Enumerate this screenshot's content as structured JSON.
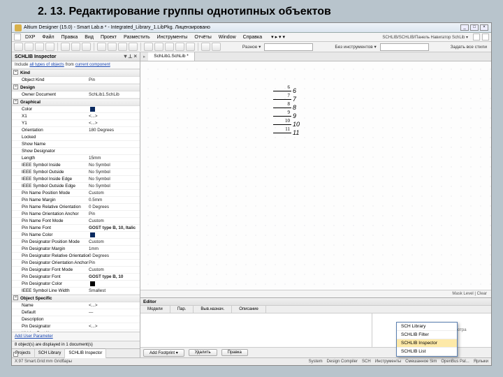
{
  "page_heading": "2. 13. Редактирование группы однотипных объектов",
  "titlebar": {
    "text": "Altium Designer (15.0) - Smart Lab.в * - Integrated_Library_1.LibPkg. Лицензировано"
  },
  "menu": {
    "items": [
      "DXP",
      "Файл",
      "Правка",
      "Вид",
      "Проект",
      "Разместить",
      "Инструменты",
      "Отчёты",
      "Window",
      "Справка"
    ],
    "right_label": "SCHLIB/SCHLIB/Панель Навигатор SchLib ▾"
  },
  "toolbar": {
    "search_label": "Разное ▾",
    "alt_label": "Без инструментов ▾",
    "hint": "Задать все стили"
  },
  "inspector": {
    "title": "SCHLIB Inspector",
    "subtitle_prefix": "Include",
    "subtitle_link1": "all types of objects",
    "subtitle_mid": "from",
    "subtitle_link2": "current component",
    "groups": [
      {
        "name": "Kind",
        "rows": [
          [
            "Object Kind",
            "Pin"
          ]
        ]
      },
      {
        "name": "Design",
        "rows": [
          [
            "Owner Document",
            "SchLib1.SchLib"
          ]
        ]
      },
      {
        "name": "Graphical",
        "rows": [
          [
            "Color",
            ""
          ],
          [
            "X1",
            "<...>"
          ],
          [
            "Y1",
            "<...>"
          ],
          [
            "Orientation",
            "180 Degrees"
          ],
          [
            "Locked",
            ""
          ],
          [
            "Show Name",
            ""
          ],
          [
            "Show Designator",
            ""
          ],
          [
            "Length",
            "15mm"
          ],
          [
            "IEEE Symbol Inside",
            "No Symbol"
          ],
          [
            "IEEE Symbol Outside",
            "No Symbol"
          ],
          [
            "IEEE Symbol Inside Edge",
            "No Symbol"
          ],
          [
            "IEEE Symbol Outside Edge",
            "No Symbol"
          ],
          [
            "Pin Name Position Mode",
            "Custom"
          ],
          [
            "Pin Name Margin",
            "0.5mm"
          ],
          [
            "Pin Name Relative Orientation",
            "0 Degrees"
          ],
          [
            "Pin Name Orientation Anchor",
            "Pin"
          ],
          [
            "Pin Name Font Mode",
            "Custom"
          ],
          [
            "Pin Name Font",
            "GOST type B, 10, Italic"
          ],
          [
            "Pin Name Color",
            ""
          ],
          [
            "Pin Designator Position Mode",
            "Custom"
          ],
          [
            "Pin Designator Margin",
            "1mm"
          ],
          [
            "Pin Designator Relative Orientation",
            "0 Degrees"
          ],
          [
            "Pin Designator Orientation Anchor",
            "Pin"
          ],
          [
            "Pin Designator Font Mode",
            "Custom"
          ],
          [
            "Pin Designator Font",
            "GOST type B, 10"
          ],
          [
            "Pin Designator Color",
            ""
          ],
          [
            "IEEE Symbol Line Width",
            "Smallest"
          ]
        ]
      },
      {
        "name": "Object Specific",
        "rows": [
          [
            "Name",
            "<...>"
          ],
          [
            "Default",
            "—"
          ],
          [
            "Description",
            ""
          ],
          [
            "Pin Designator",
            "<...>"
          ],
          [
            "Hidden Part Name",
            "<...>"
          ],
          [
            "Electrical Type",
            "Passive"
          ],
          [
            "Pin Swap Group",
            ""
          ]
        ]
      },
      {
        "name": "Parameters",
        "rows": []
      }
    ],
    "bottom_link": "Add User Parameter",
    "footer": "8 object(s) are displayed in 1 document(s)",
    "tabs": [
      "Projects",
      "SCH Library",
      "SCHLIB Inspector"
    ]
  },
  "doc_tab": "SchLib1.SchLib *",
  "pins": [
    {
      "num": "6",
      "label": "6"
    },
    {
      "num": "7",
      "label": "7"
    },
    {
      "num": "8",
      "label": "8"
    },
    {
      "num": "9",
      "label": "9"
    },
    {
      "num": "10",
      "label": "10"
    },
    {
      "num": "11",
      "label": "11"
    }
  ],
  "canvas_status": "Mask Level | Clear",
  "editor": {
    "title": "Editor",
    "tabs": [
      "Модели",
      "Пар.",
      "Выв.назнач.",
      "Описание"
    ],
    "preview_msg": "Не выбрана модель для просмотра",
    "buttons": [
      "Add Footprint ▾",
      "Удалить",
      "Правка"
    ]
  },
  "popup": {
    "items": [
      "SCH Library",
      "SCHLIB Filter",
      "SCHLIB Inspector",
      "SCHLIB List"
    ],
    "selected": 2
  },
  "statusbar": {
    "left": "X:97 Smart.Grid:mm   Gridбары",
    "right": [
      "System",
      "Design Compiler",
      "SCH",
      "Инструменты",
      "Смешанное Sim",
      "OpenBus Pal...",
      "Ярлыки"
    ]
  },
  "colors": {
    "navy": "#0a2a60",
    "black": "#000000"
  }
}
